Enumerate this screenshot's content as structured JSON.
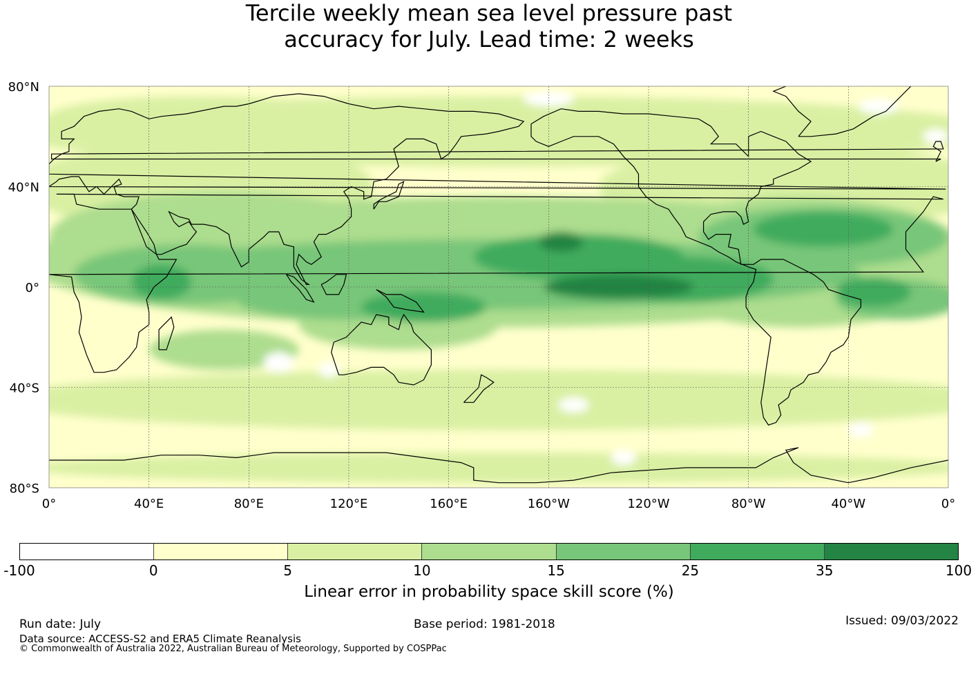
{
  "title": {
    "line1": "Tercile weekly mean sea level pressure past",
    "line2": "accuracy for July. Lead time: 2 weeks"
  },
  "map": {
    "lat_labels": [
      "80°N",
      "40°N",
      "0°",
      "40°S",
      "80°S"
    ],
    "lon_labels": [
      "0°",
      "40°E",
      "80°E",
      "120°E",
      "160°E",
      "160°W",
      "120°W",
      "80°W",
      "40°W",
      "0°"
    ],
    "graticule_lat": [
      80,
      40,
      0,
      -40,
      -80
    ],
    "graticule_lon": [
      0,
      40,
      80,
      120,
      160,
      200,
      240,
      280,
      320,
      360
    ],
    "extent": {
      "lon": [
        0,
        360
      ],
      "lat": [
        -80,
        80
      ]
    },
    "projection": "plate-carree-pacific-centred",
    "skill_regions": [
      {
        "level": 1,
        "desc": "background"
      },
      {
        "level": 2,
        "desc": "mid-latitude bands"
      },
      {
        "level": 3,
        "desc": "subtropics"
      },
      {
        "level": 4,
        "desc": "tropical belt"
      },
      {
        "level": 5,
        "desc": "tropical Pacific/Atlantic"
      },
      {
        "level": 6,
        "desc": "central equatorial Pacific"
      }
    ]
  },
  "colorbar": {
    "ticks": [
      "-100",
      "0",
      "5",
      "10",
      "15",
      "25",
      "35",
      "100"
    ],
    "colors": [
      "#ffffff",
      "#ffffcc",
      "#d9f0a3",
      "#addd8e",
      "#78c679",
      "#41ab5d",
      "#238443"
    ],
    "label": "Linear error in probability space skill score (%)"
  },
  "footer": {
    "run_date": "Run date: July",
    "base_period": "Base period: 1981-2018",
    "issued": "Issued: 09/03/2022",
    "data_source": "Data source: ACCESS-S2 and ERA5 Climate Reanalysis",
    "copyright": "© Commonwealth of Australia 2022, Australian Bureau of Meteorology, Supported by COSPPac"
  }
}
